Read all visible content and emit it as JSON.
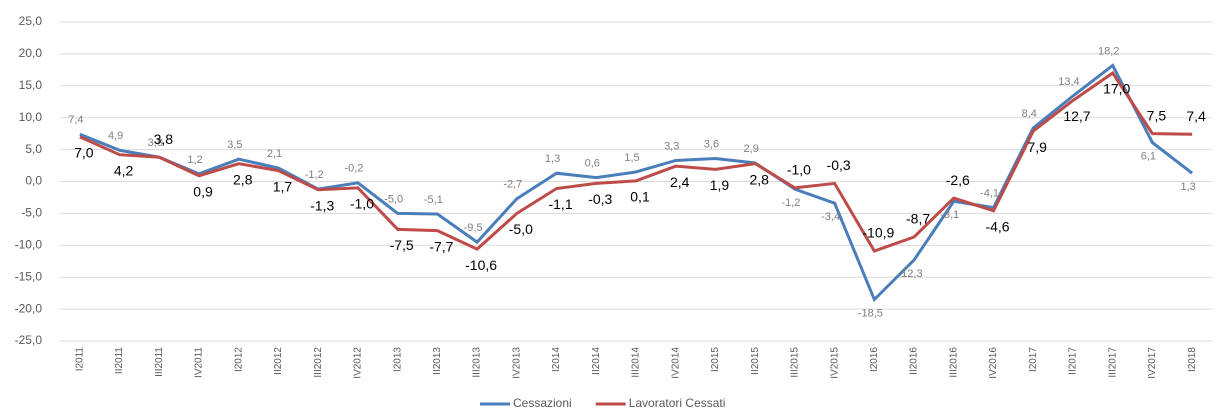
{
  "chart_data": {
    "type": "line",
    "categories": [
      "I2011",
      "II2011",
      "III2011",
      "IV2011",
      "I2012",
      "II2012",
      "III2012",
      "IV2012",
      "I2013",
      "II2013",
      "III2013",
      "IV2013",
      "I2014",
      "II2014",
      "III2014",
      "IV2014",
      "I2015",
      "II2015",
      "III2015",
      "IV2015",
      "I2016",
      "II2016",
      "III2016",
      "IV2016",
      "I2017",
      "II2017",
      "III2017",
      "IV2017",
      "I2018"
    ],
    "series": [
      {
        "name": "Cessazioni",
        "color": "#4a7ebb",
        "values": [
          7.4,
          4.9,
          3.8,
          1.2,
          3.5,
          2.1,
          -1.2,
          -0.2,
          -5.0,
          -5.1,
          -9.5,
          -2.7,
          1.3,
          0.6,
          1.5,
          3.3,
          3.6,
          2.9,
          -1.2,
          -3.4,
          -18.5,
          -12.3,
          -3.1,
          -4.1,
          8.4,
          13.4,
          18.2,
          6.1,
          1.3
        ],
        "value_labels": [
          "7,4",
          "4,9",
          "3,8",
          "1,2",
          "3,5",
          "2,1",
          "-1,2",
          "-0,2",
          "-5,0",
          "-5,1",
          "-9,5",
          "-2,7",
          "1,3",
          "0,6",
          "1,5",
          "3,3",
          "3,6",
          "2,9",
          "-1,2",
          "-3,4",
          "-18,5",
          "-12,3",
          "-3,1",
          "-4,1",
          "8,4",
          "13,4",
          "18,2",
          "6,1",
          "1,3"
        ]
      },
      {
        "name": "Lavoratori Cessati",
        "color": "#be4b48",
        "values": [
          7.0,
          4.2,
          3.8,
          0.9,
          2.8,
          1.7,
          -1.3,
          -1.0,
          -7.5,
          -7.7,
          -10.6,
          -5.0,
          -1.1,
          -0.3,
          0.1,
          2.4,
          1.9,
          2.8,
          -1.0,
          -0.3,
          -10.9,
          -8.7,
          -2.6,
          -4.6,
          7.9,
          12.7,
          17.0,
          7.5,
          7.4
        ],
        "value_labels": [
          "7,0",
          "4,2",
          "3,8",
          "0,9",
          "2,8",
          "1,7",
          "-1,3",
          "-1,0",
          "-7,5",
          "-7,7",
          "-10,6",
          "-5,0",
          "-1,1",
          "-0,3",
          "0,1",
          "2,4",
          "1,9",
          "2,8",
          "-1,0",
          "-0,3",
          "-10,9",
          "-8,7",
          "-2,6",
          "-4,6",
          "7,9",
          "12,7",
          "17,0",
          "7,5",
          "7,4"
        ]
      }
    ],
    "ylim": [
      -25,
      25
    ],
    "yticks": [
      {
        "value": -25,
        "label": "-25,0"
      },
      {
        "value": -20,
        "label": "-20,0"
      },
      {
        "value": -15,
        "label": "-15,0"
      },
      {
        "value": -10,
        "label": "-10,0"
      },
      {
        "value": -5,
        "label": "-5,0"
      },
      {
        "value": 0,
        "label": "0,0"
      },
      {
        "value": 5,
        "label": "5,0"
      },
      {
        "value": 10,
        "label": "10,0"
      },
      {
        "value": 15,
        "label": "15,0"
      },
      {
        "value": 20,
        "label": "20,0"
      },
      {
        "value": 25,
        "label": "25,0"
      }
    ],
    "grid": true,
    "legend": "bottom"
  }
}
